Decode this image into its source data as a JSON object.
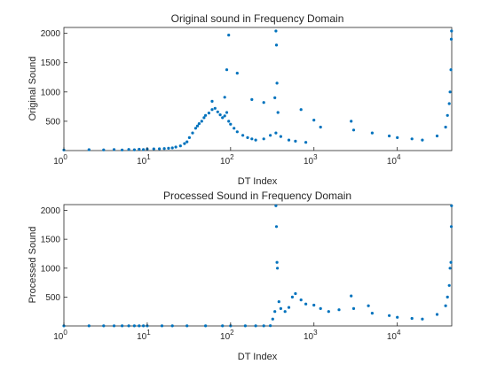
{
  "chart_data": [
    {
      "type": "scatter",
      "title": "Original sound in Frequency Domain",
      "xlabel": "DT Index",
      "ylabel": "Original Sound",
      "xscale": "log",
      "xlim": [
        1,
        45000
      ],
      "ylim": [
        0,
        2100
      ],
      "x_ticks": [
        {
          "value": 1,
          "base": "10",
          "exp": "0"
        },
        {
          "value": 10,
          "base": "10",
          "exp": "1"
        },
        {
          "value": 100,
          "base": "10",
          "exp": "2"
        },
        {
          "value": 1000,
          "base": "10",
          "exp": "3"
        },
        {
          "value": 10000,
          "base": "10",
          "exp": "4"
        }
      ],
      "y_ticks": [
        {
          "value": 500,
          "label": "500"
        },
        {
          "value": 1000,
          "label": "1000"
        },
        {
          "value": 1500,
          "label": "1500"
        },
        {
          "value": 2000,
          "label": "2000"
        }
      ],
      "marker_color": "#0072BD",
      "points": [
        [
          1,
          10
        ],
        [
          2,
          15
        ],
        [
          3,
          12
        ],
        [
          4,
          18
        ],
        [
          5,
          10
        ],
        [
          6,
          20
        ],
        [
          7,
          14
        ],
        [
          8,
          22
        ],
        [
          9,
          18
        ],
        [
          10,
          25
        ],
        [
          12,
          28
        ],
        [
          14,
          30
        ],
        [
          16,
          35
        ],
        [
          18,
          40
        ],
        [
          20,
          45
        ],
        [
          22,
          60
        ],
        [
          25,
          80
        ],
        [
          28,
          120
        ],
        [
          30,
          150
        ],
        [
          32,
          220
        ],
        [
          35,
          300
        ],
        [
          38,
          380
        ],
        [
          40,
          420
        ],
        [
          42,
          460
        ],
        [
          45,
          500
        ],
        [
          48,
          560
        ],
        [
          50,
          600
        ],
        [
          55,
          640
        ],
        [
          60,
          700
        ],
        [
          65,
          720
        ],
        [
          70,
          660
        ],
        [
          75,
          610
        ],
        [
          80,
          560
        ],
        [
          85,
          590
        ],
        [
          90,
          650
        ],
        [
          95,
          500
        ],
        [
          100,
          450
        ],
        [
          110,
          380
        ],
        [
          120,
          320
        ],
        [
          140,
          260
        ],
        [
          160,
          220
        ],
        [
          180,
          200
        ],
        [
          200,
          180
        ],
        [
          250,
          200
        ],
        [
          300,
          260
        ],
        [
          350,
          300
        ],
        [
          400,
          240
        ],
        [
          500,
          180
        ],
        [
          600,
          160
        ],
        [
          800,
          140
        ],
        [
          90,
          1380
        ],
        [
          95,
          1970
        ],
        [
          120,
          1320
        ],
        [
          350,
          2040
        ],
        [
          355,
          1800
        ],
        [
          360,
          1150
        ],
        [
          340,
          900
        ],
        [
          370,
          650
        ],
        [
          60,
          840
        ],
        [
          85,
          910
        ],
        [
          180,
          870
        ],
        [
          250,
          820
        ],
        [
          700,
          700
        ],
        [
          1000,
          520
        ],
        [
          1200,
          400
        ],
        [
          2800,
          500
        ],
        [
          3000,
          350
        ],
        [
          5000,
          300
        ],
        [
          8000,
          250
        ],
        [
          10000,
          220
        ],
        [
          15000,
          200
        ],
        [
          20000,
          180
        ],
        [
          30000,
          250
        ],
        [
          38000,
          400
        ],
        [
          40000,
          600
        ],
        [
          42000,
          800
        ],
        [
          43000,
          1000
        ],
        [
          44000,
          1380
        ],
        [
          44500,
          1900
        ],
        [
          44800,
          2040
        ]
      ]
    },
    {
      "type": "scatter",
      "title": "Processed Sound in Frequency Domain",
      "xlabel": "DT Index",
      "ylabel": "Processed Sound",
      "xscale": "log",
      "xlim": [
        1,
        45000
      ],
      "ylim": [
        0,
        2100
      ],
      "x_ticks": [
        {
          "value": 1,
          "base": "10",
          "exp": "0"
        },
        {
          "value": 10,
          "base": "10",
          "exp": "1"
        },
        {
          "value": 100,
          "base": "10",
          "exp": "2"
        },
        {
          "value": 1000,
          "base": "10",
          "exp": "3"
        },
        {
          "value": 10000,
          "base": "10",
          "exp": "4"
        }
      ],
      "y_ticks": [
        {
          "value": 500,
          "label": "500"
        },
        {
          "value": 1000,
          "label": "1000"
        },
        {
          "value": 1500,
          "label": "1500"
        },
        {
          "value": 2000,
          "label": "2000"
        }
      ],
      "marker_color": "#0072BD",
      "points": [
        [
          1,
          2
        ],
        [
          2,
          2
        ],
        [
          3,
          2
        ],
        [
          4,
          2
        ],
        [
          5,
          2
        ],
        [
          6,
          2
        ],
        [
          7,
          2
        ],
        [
          8,
          2
        ],
        [
          9,
          2
        ],
        [
          10,
          2
        ],
        [
          15,
          2
        ],
        [
          20,
          2
        ],
        [
          30,
          2
        ],
        [
          50,
          2
        ],
        [
          80,
          2
        ],
        [
          100,
          2
        ],
        [
          150,
          2
        ],
        [
          200,
          2
        ],
        [
          250,
          2
        ],
        [
          300,
          5
        ],
        [
          320,
          120
        ],
        [
          340,
          250
        ],
        [
          350,
          2080
        ],
        [
          355,
          1720
        ],
        [
          360,
          1100
        ],
        [
          365,
          1000
        ],
        [
          380,
          420
        ],
        [
          400,
          300
        ],
        [
          450,
          250
        ],
        [
          500,
          320
        ],
        [
          550,
          500
        ],
        [
          600,
          560
        ],
        [
          700,
          450
        ],
        [
          800,
          380
        ],
        [
          1000,
          360
        ],
        [
          1200,
          300
        ],
        [
          1500,
          250
        ],
        [
          2000,
          280
        ],
        [
          2800,
          520
        ],
        [
          3000,
          300
        ],
        [
          4500,
          350
        ],
        [
          5000,
          220
        ],
        [
          8000,
          180
        ],
        [
          10000,
          150
        ],
        [
          15000,
          130
        ],
        [
          20000,
          120
        ],
        [
          30000,
          200
        ],
        [
          38000,
          350
        ],
        [
          40000,
          500
        ],
        [
          42000,
          700
        ],
        [
          43000,
          1000
        ],
        [
          44000,
          1100
        ],
        [
          44500,
          1720
        ],
        [
          44800,
          2080
        ]
      ]
    }
  ]
}
